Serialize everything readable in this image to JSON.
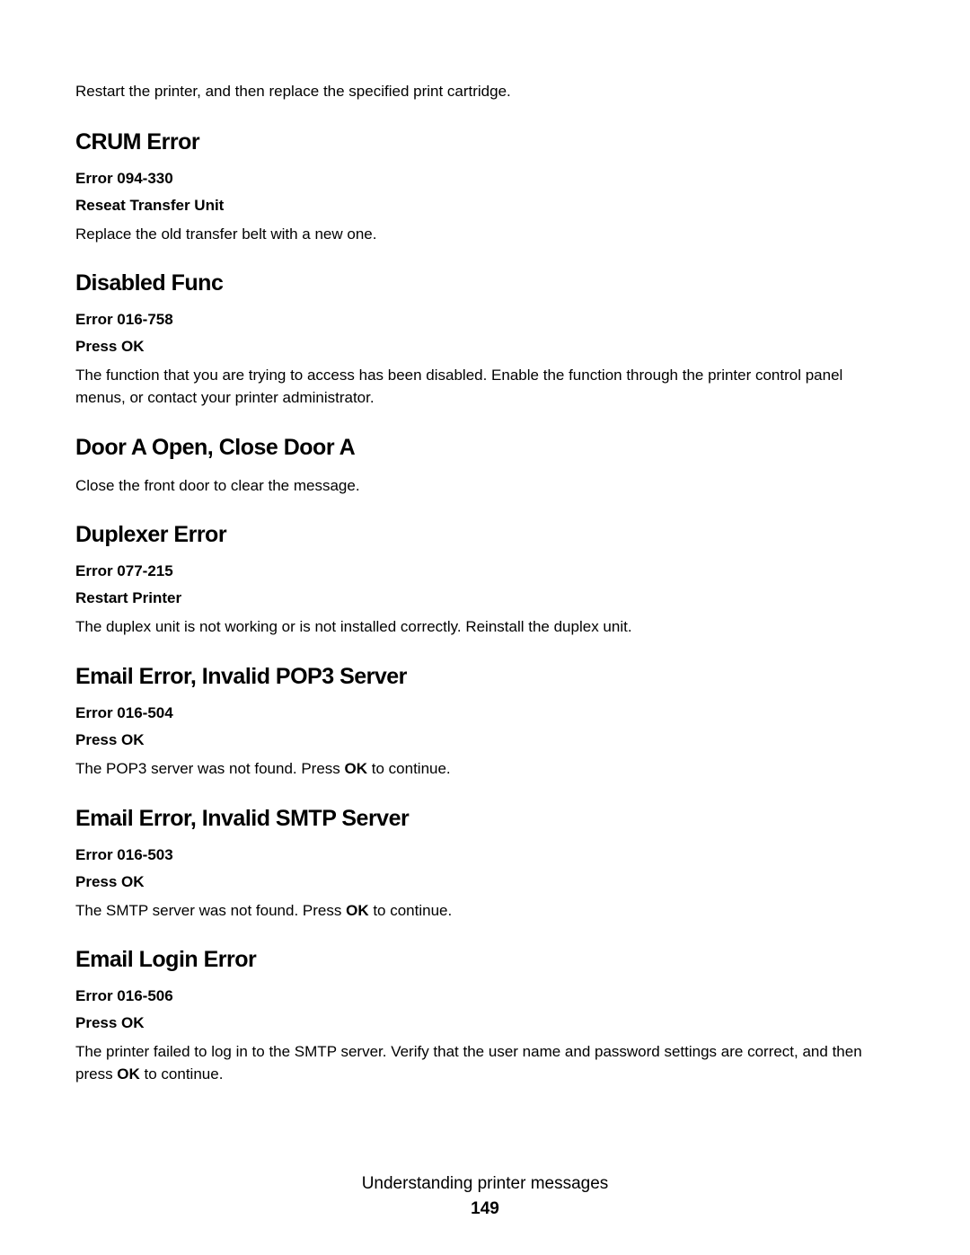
{
  "intro": "Restart the printer, and then replace the specified print cartridge.",
  "sections": {
    "crum": {
      "heading": "CRUM Error",
      "errorCode": "Error 094-330",
      "action": "Reseat Transfer Unit",
      "body": "Replace the old transfer belt with a new one."
    },
    "disabled": {
      "heading": "Disabled Func",
      "errorCode": "Error 016-758",
      "action": "Press OK",
      "body": "The function that you are trying to access has been disabled. Enable the function through the printer control panel menus, or contact your printer administrator."
    },
    "doorA": {
      "heading": "Door A Open, Close Door A",
      "body": "Close the front door to clear the message."
    },
    "duplexer": {
      "heading": "Duplexer Error",
      "errorCode": "Error 077-215",
      "action": "Restart Printer",
      "body": "The duplex unit is not working or is not installed correctly. Reinstall the duplex unit."
    },
    "pop3": {
      "heading": "Email Error, Invalid POP3 Server",
      "errorCode": "Error 016-504",
      "action": "Press OK",
      "bodyPre": "The POP3 server was not found. Press ",
      "bodyBold": "OK",
      "bodyPost": " to continue."
    },
    "smtp": {
      "heading": "Email Error, Invalid SMTP Server",
      "errorCode": "Error 016-503",
      "action": "Press OK",
      "bodyPre": "The SMTP server was not found. Press ",
      "bodyBold": "OK",
      "bodyPost": " to continue."
    },
    "login": {
      "heading": "Email Login Error",
      "errorCode": "Error 016-506",
      "action": "Press OK",
      "bodyPre": "The printer failed to log in to the SMTP server. Verify that the user name and password settings are correct, and then press ",
      "bodyBold": "OK",
      "bodyPost": " to continue."
    }
  },
  "footer": {
    "title": "Understanding printer messages",
    "page": "149"
  }
}
